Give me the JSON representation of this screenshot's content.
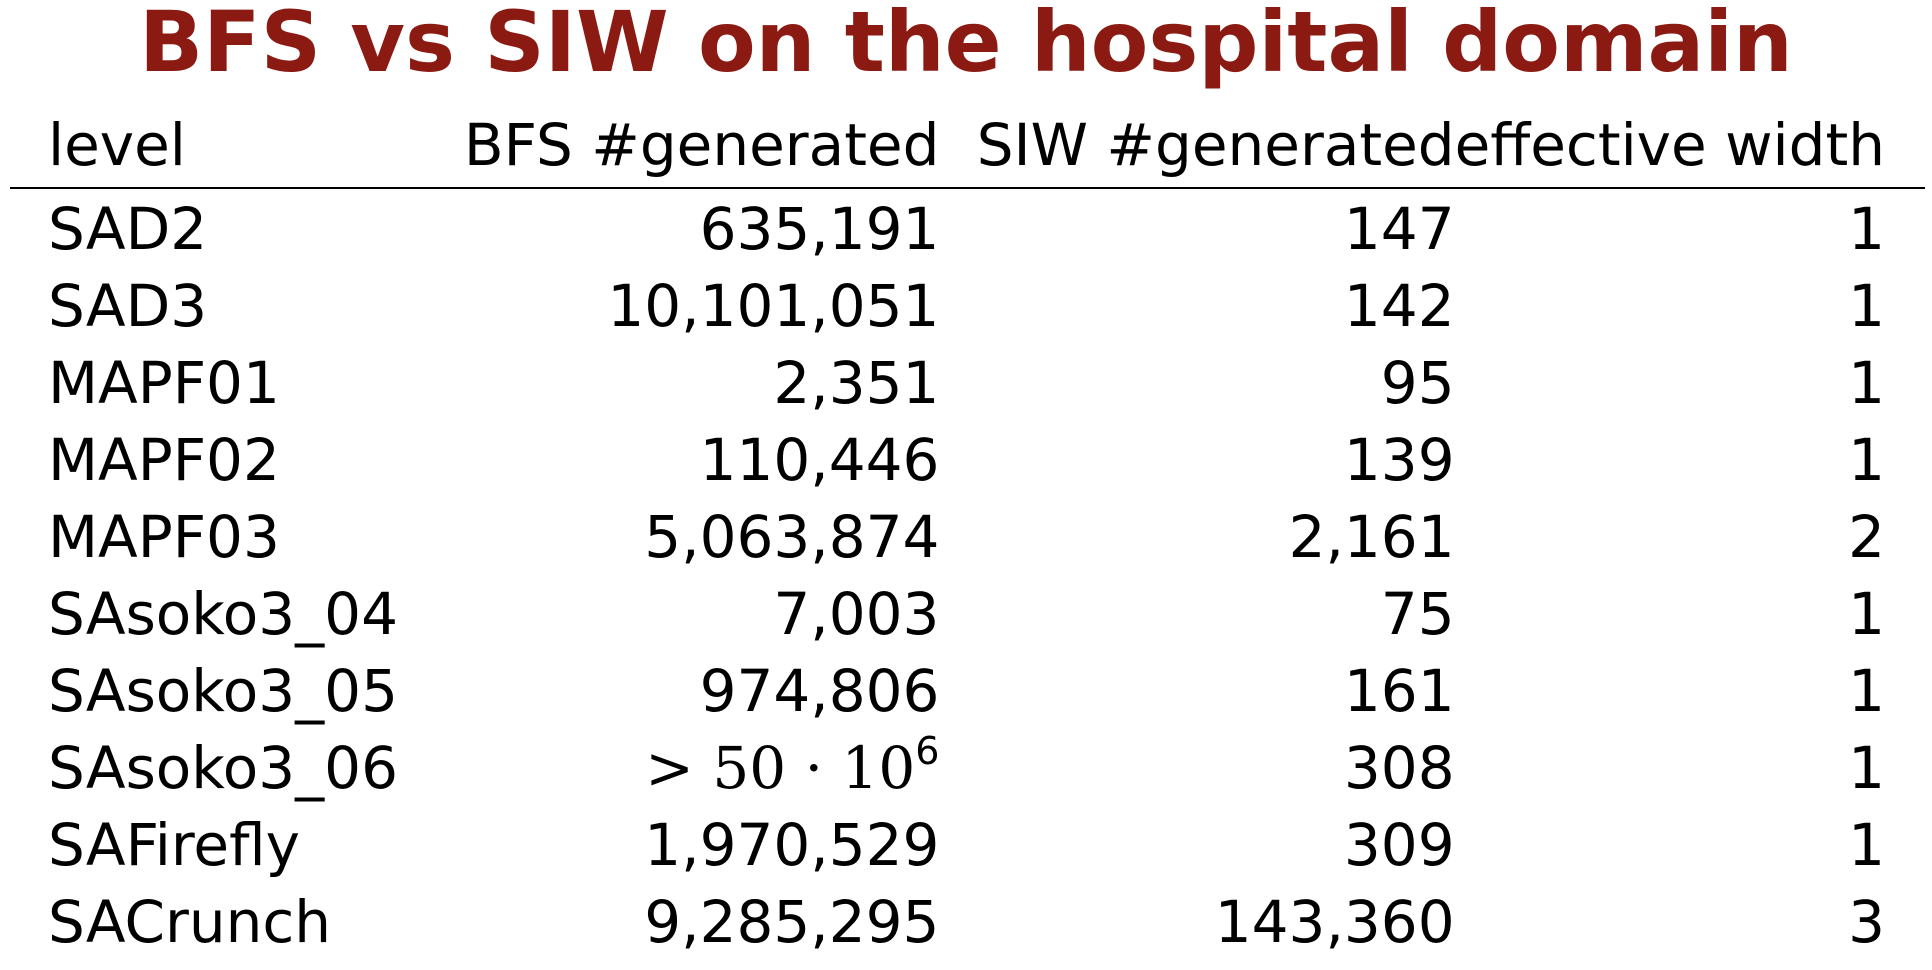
{
  "title": "BFS vs SIW on the hospital domain",
  "title_color": "#8b1a12",
  "headers": {
    "level": "level",
    "bfs": "BFS #generated",
    "siw": "SIW #generated",
    "width": "effective width"
  },
  "rows": [
    {
      "level": "SAD2",
      "bfs": "635,191",
      "siw": "147",
      "width": "1"
    },
    {
      "level": "SAD3",
      "bfs": "10,101,051",
      "siw": "142",
      "width": "1"
    },
    {
      "level": "MAPF01",
      "bfs": "2,351",
      "siw": "95",
      "width": "1"
    },
    {
      "level": "MAPF02",
      "bfs": "110,446",
      "siw": "139",
      "width": "1"
    },
    {
      "level": "MAPF03",
      "bfs": "5,063,874",
      "siw": "2,161",
      "width": "2"
    },
    {
      "level": "SAsoko3_04",
      "bfs": "7,003",
      "siw": "75",
      "width": "1"
    },
    {
      "level": "SAsoko3_05",
      "bfs": "974,806",
      "siw": "161",
      "width": "1"
    },
    {
      "level": "SAsoko3_06",
      "bfs_prefix": "> 50 · 10",
      "bfs_exp": "6",
      "siw": "308",
      "width": "1"
    },
    {
      "level": "SAFirefly",
      "bfs": "1,970,529",
      "siw": "309",
      "width": "1"
    },
    {
      "level": "SACrunch",
      "bfs": "9,285,295",
      "siw": "143,360",
      "width": "3"
    }
  ]
}
